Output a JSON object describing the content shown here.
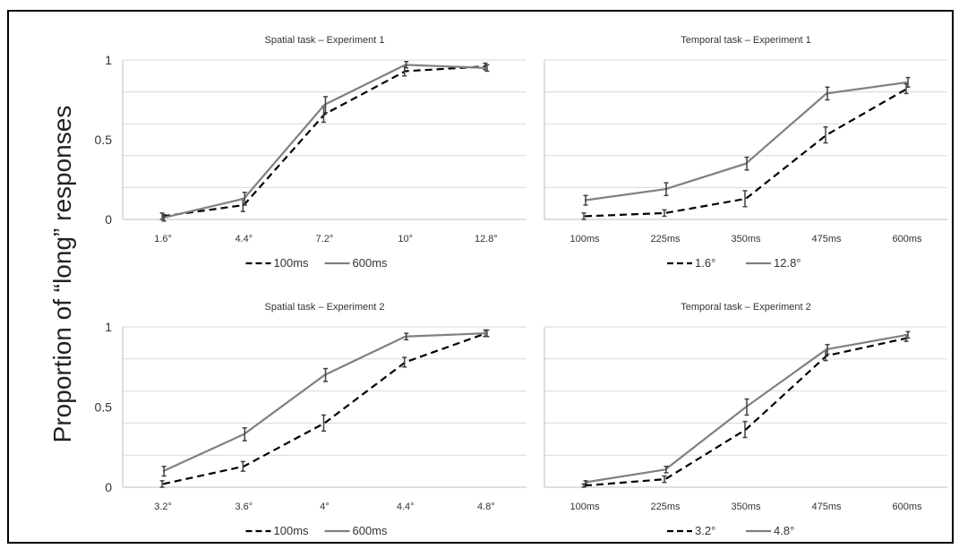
{
  "shared_ylabel": "Proportion of “long” responses",
  "colors": {
    "series_dashed": "#000000",
    "series_solid": "#808080",
    "grid": "#d9d9d9",
    "axis": "#bfbfbf",
    "text": "#333333"
  },
  "chart_data": [
    {
      "type": "line",
      "title": "Spatial task – Experiment 1",
      "categories": [
        "1.6°",
        "4.4°",
        "7.2°",
        "10°",
        "12.8°"
      ],
      "ylim": [
        0,
        1
      ],
      "yticks": [
        "0",
        "0.5",
        "1"
      ],
      "grid": true,
      "legend_position": "bottom",
      "series": [
        {
          "name": "100ms",
          "style": "dashed",
          "values": [
            0.02,
            0.09,
            0.66,
            0.93,
            0.96
          ],
          "errors": [
            0.02,
            0.04,
            0.05,
            0.03,
            0.02
          ]
        },
        {
          "name": "600ms",
          "style": "solid",
          "values": [
            0.01,
            0.13,
            0.72,
            0.97,
            0.95
          ],
          "errors": [
            0.02,
            0.04,
            0.05,
            0.02,
            0.02
          ]
        }
      ]
    },
    {
      "type": "line",
      "title": "Temporal task – Experiment 1",
      "categories": [
        "100ms",
        "225ms",
        "350ms",
        "475ms",
        "600ms"
      ],
      "ylim": [
        0,
        1
      ],
      "yticks": [],
      "grid": true,
      "legend_position": "bottom",
      "series": [
        {
          "name": "1.6°",
          "style": "dashed",
          "values": [
            0.02,
            0.04,
            0.13,
            0.53,
            0.82
          ],
          "errors": [
            0.02,
            0.02,
            0.05,
            0.05,
            0.03
          ]
        },
        {
          "name": "12.8°",
          "style": "solid",
          "values": [
            0.12,
            0.19,
            0.35,
            0.79,
            0.86
          ],
          "errors": [
            0.03,
            0.04,
            0.04,
            0.04,
            0.03
          ]
        }
      ]
    },
    {
      "type": "line",
      "title": "Spatial task – Experiment 2",
      "categories": [
        "3.2°",
        "3.6°",
        "4°",
        "4.4°",
        "4.8°"
      ],
      "ylim": [
        0,
        1
      ],
      "yticks": [
        "0",
        "0.5",
        "1"
      ],
      "grid": true,
      "legend_position": "bottom",
      "series": [
        {
          "name": "100ms",
          "style": "dashed",
          "values": [
            0.02,
            0.13,
            0.4,
            0.78,
            0.96
          ],
          "errors": [
            0.02,
            0.03,
            0.05,
            0.03,
            0.02
          ]
        },
        {
          "name": "600ms",
          "style": "solid",
          "values": [
            0.1,
            0.33,
            0.7,
            0.94,
            0.96
          ],
          "errors": [
            0.03,
            0.04,
            0.04,
            0.02,
            0.02
          ]
        }
      ]
    },
    {
      "type": "line",
      "title": "Temporal task – Experiment 2",
      "categories": [
        "100ms",
        "225ms",
        "350ms",
        "475ms",
        "600ms"
      ],
      "ylim": [
        0,
        1
      ],
      "yticks": [],
      "grid": true,
      "legend_position": "bottom",
      "series": [
        {
          "name": "3.2°",
          "style": "dashed",
          "values": [
            0.01,
            0.05,
            0.36,
            0.82,
            0.93
          ],
          "errors": [
            0.01,
            0.02,
            0.05,
            0.03,
            0.02
          ]
        },
        {
          "name": "4.8°",
          "style": "solid",
          "values": [
            0.03,
            0.11,
            0.5,
            0.86,
            0.95
          ],
          "errors": [
            0.01,
            0.02,
            0.05,
            0.03,
            0.02
          ]
        }
      ]
    }
  ]
}
